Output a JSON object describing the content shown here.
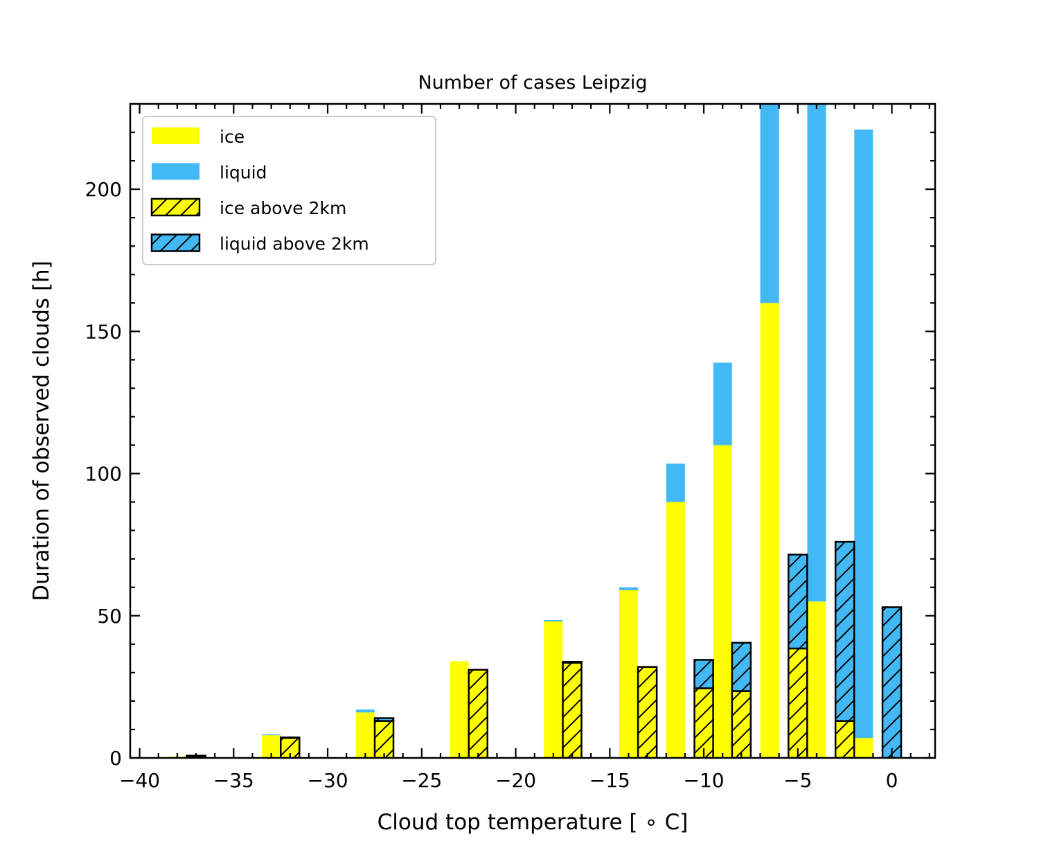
{
  "chart_data": {
    "type": "bar",
    "title": "Number of cases Leipzig",
    "xlabel": "Cloud top temperature [$^\\circ$C]",
    "xlabel_display": "Cloud top temperature [ ∘ C]",
    "ylabel": "Duration of observed clouds [h]",
    "xlim": [
      -40.5,
      2.3
    ],
    "ylim": [
      0,
      230
    ],
    "x_ticks": [
      -40,
      -35,
      -30,
      -25,
      -20,
      -15,
      -10,
      -5,
      0
    ],
    "x_tick_labels": [
      "−40",
      "−35",
      "−30",
      "−25",
      "−20",
      "−15",
      "−10",
      "−5",
      "0"
    ],
    "y_ticks": [
      0,
      50,
      100,
      150,
      200
    ],
    "y_tick_labels": [
      "0",
      "50",
      "100",
      "150",
      "200"
    ],
    "grid": false,
    "legend_position": "upper-left",
    "colors": {
      "ice": "#ffff00",
      "liquid": "#42b9f5",
      "edge": "#000000"
    },
    "series": [
      {
        "name": "ice",
        "group": "all",
        "x": [
          -38,
          -33,
          -28,
          -23,
          -18,
          -14,
          -11.5,
          -9,
          -6.5,
          -4,
          -1.5
        ],
        "values": [
          0.5,
          8,
          16,
          34,
          48,
          59,
          90,
          110,
          160,
          55,
          7
        ]
      },
      {
        "name": "liquid",
        "group": "all",
        "stacked_on": "ice",
        "x": [
          -38,
          -33,
          -28,
          -23,
          -18,
          -14,
          -11.5,
          -9,
          -6.5,
          -4,
          -1.5
        ],
        "values": [
          0,
          0.3,
          1,
          0,
          0.5,
          1,
          13.5,
          29,
          70,
          175,
          214
        ]
      },
      {
        "name": "ice above 2km",
        "group": "above_2km",
        "x": [
          -37,
          -32,
          -27,
          -22,
          -17,
          -13,
          -10,
          -8,
          -5,
          -2.5,
          0
        ],
        "values": [
          0.5,
          7,
          13,
          31,
          33.5,
          32,
          24.5,
          23.5,
          38.5,
          13,
          0
        ]
      },
      {
        "name": "liquid above 2km",
        "group": "above_2km",
        "stacked_on": "ice above 2km",
        "x": [
          -37,
          -32,
          -27,
          -22,
          -17,
          -13,
          -10,
          -8,
          -5,
          -2.5,
          0
        ],
        "values": [
          0.3,
          0.2,
          1,
          0,
          0.3,
          0,
          10,
          17,
          33,
          63,
          53
        ]
      }
    ]
  }
}
